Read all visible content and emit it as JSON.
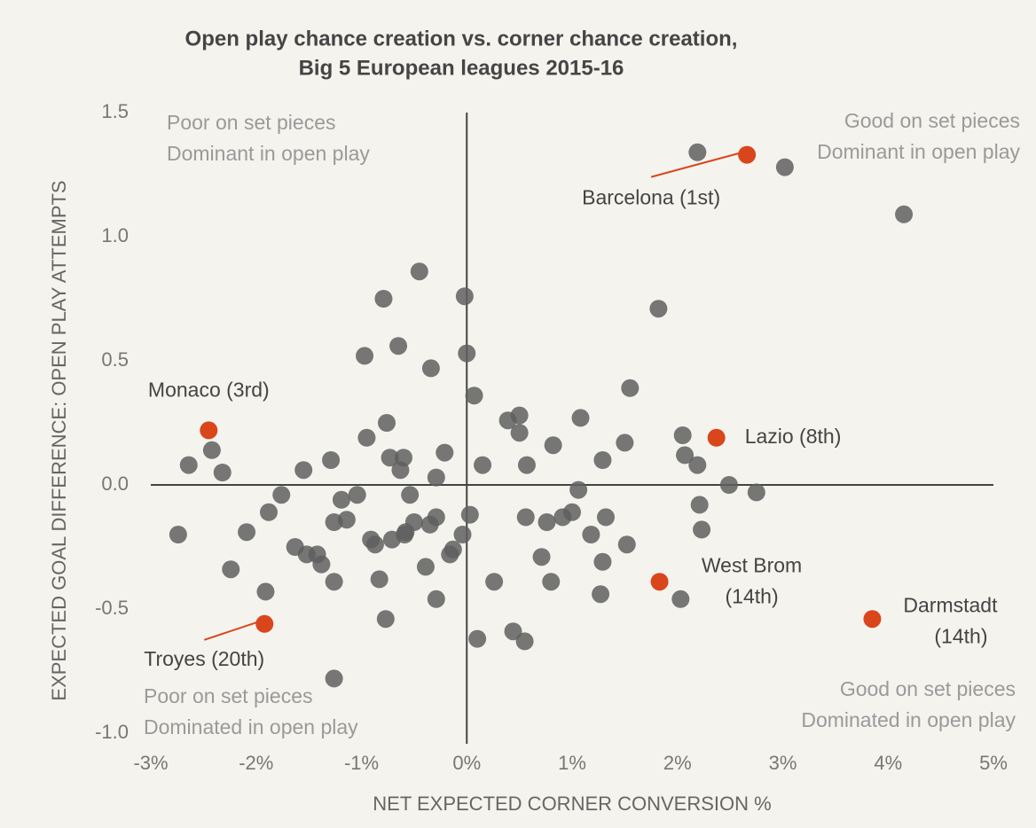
{
  "chart_data": {
    "type": "scatter",
    "title": [
      "Open play chance creation vs. corner chance creation,",
      "Big 5 European leagues 2015-16"
    ],
    "x_label": "NET EXPECTED CORNER CONVERSION %",
    "y_label": "EXPECTED GOAL DIFFERENCE: OPEN PLAY ATTEMPTS",
    "annotations": [
      [
        "Poor on set pieces",
        "Dominant in open play"
      ],
      [
        "Good on set pieces",
        "Dominant in open play"
      ],
      [
        "Poor on set pieces",
        "Dominated in open play"
      ],
      [
        "Good on set pieces",
        "Dominated in open play"
      ]
    ],
    "xlim": [
      -3,
      5
    ],
    "ylim": [
      -1,
      1.5
    ],
    "xticks": [
      {
        "value": -3,
        "label": "-3%"
      },
      {
        "value": -2,
        "label": "-2%"
      },
      {
        "value": -1,
        "label": "-1%"
      },
      {
        "value": 0,
        "label": "0%"
      },
      {
        "value": 1,
        "label": "1%"
      },
      {
        "value": 2,
        "label": "2%"
      },
      {
        "value": 3,
        "label": "3%"
      },
      {
        "value": 4,
        "label": "4%"
      },
      {
        "value": 5,
        "label": "5%"
      }
    ],
    "yticks": [
      {
        "value": -1,
        "label": "-1.0"
      },
      -0.5,
      {
        "value": 0,
        "label": "0.0"
      },
      0.5,
      {
        "value": 1,
        "label": "1.0"
      },
      1.5
    ],
    "series": [
      {
        "color": "#5f5f5f",
        "x": [
          2.19,
          3.02,
          4.15,
          1.82,
          -0.45,
          -0.02,
          -0.79,
          -0.65,
          -0.97,
          0,
          -0.34,
          0.07,
          1.55,
          0.39,
          0.5,
          0.5,
          1.08,
          -0.76,
          -0.95,
          2.05,
          2.07,
          2.19,
          0.82,
          1.5,
          1.29,
          -0.21,
          0.15,
          0.57,
          -0.73,
          -0.6,
          -0.63,
          -1.29,
          -1.55,
          -2.64,
          -2.42,
          -2.32,
          -0.29,
          1.06,
          2.49,
          2.75,
          2.21,
          2.23,
          -0.54,
          -1.04,
          -1.19,
          -1.76,
          -1.14,
          -1.26,
          0.03,
          -0.29,
          -0.5,
          -0.58,
          -0.35,
          -0.04,
          -0.13,
          0.56,
          0.76,
          0.91,
          1,
          1.32,
          1.18,
          1.52,
          -0.91,
          -0.87,
          -0.71,
          -0.59,
          -1.88,
          -2.09,
          -2.74,
          -1.63,
          -1.52,
          -1.42,
          -1.38,
          -2.24,
          -1.26,
          -0.83,
          -0.39,
          -0.16,
          0.71,
          0.8,
          0.26,
          1.29,
          1.27,
          2.03,
          -0.29,
          -1.91,
          -0.77,
          0.1,
          0.44,
          0.55,
          -1.26
        ],
        "values": [
          1.34,
          1.28,
          1.09,
          0.71,
          0.86,
          0.76,
          0.75,
          0.56,
          0.52,
          0.53,
          0.47,
          0.36,
          0.39,
          0.26,
          0.28,
          0.21,
          0.27,
          0.25,
          0.19,
          0.2,
          0.12,
          0.08,
          0.16,
          0.17,
          0.1,
          0.13,
          0.08,
          0.08,
          0.11,
          0.11,
          0.06,
          0.1,
          0.06,
          0.08,
          0.14,
          0.05,
          0.03,
          -0.02,
          0,
          -0.03,
          -0.08,
          -0.18,
          -0.04,
          -0.04,
          -0.06,
          -0.04,
          -0.14,
          -0.15,
          -0.12,
          -0.13,
          -0.15,
          -0.19,
          -0.16,
          -0.2,
          -0.26,
          -0.13,
          -0.15,
          -0.13,
          -0.11,
          -0.13,
          -0.2,
          -0.24,
          -0.22,
          -0.24,
          -0.22,
          -0.2,
          -0.11,
          -0.19,
          -0.2,
          -0.25,
          -0.28,
          -0.28,
          -0.32,
          -0.34,
          -0.39,
          -0.38,
          -0.33,
          -0.28,
          -0.29,
          -0.39,
          -0.39,
          -0.31,
          -0.44,
          -0.46,
          -0.46,
          -0.43,
          -0.54,
          -0.62,
          -0.59,
          -0.63,
          -0.78
        ]
      },
      {
        "color": "#d9461c",
        "x": [
          2.66,
          2.37,
          1.83,
          3.85,
          -2.45,
          -1.92
        ],
        "values": [
          1.33,
          0.19,
          -0.39,
          -0.54,
          0.22,
          -0.56
        ],
        "labels": [
          [
            "Barcelona (1st)"
          ],
          [
            "Lazio (8th)"
          ],
          [
            "West Brom",
            "(14th)"
          ],
          [
            "Darmstadt",
            "(14th)"
          ],
          [
            "Monaco (3rd)"
          ],
          [
            "Troyes (20th)"
          ]
        ]
      }
    ]
  }
}
